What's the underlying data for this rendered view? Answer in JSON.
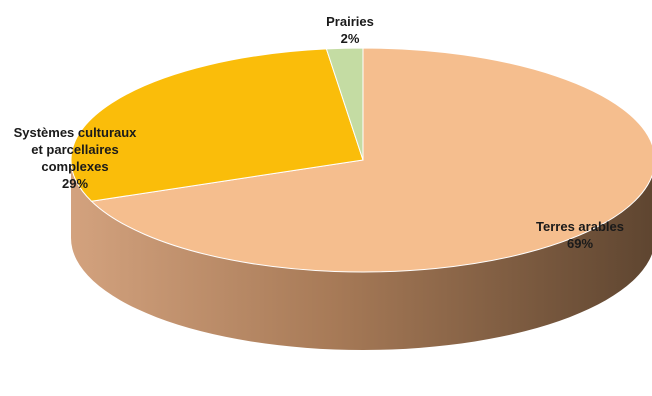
{
  "chart_data": {
    "type": "pie",
    "title": "",
    "slices": [
      {
        "label": "Terres arables",
        "value": 69,
        "pct_label": "69%",
        "color": "#F5BE8E"
      },
      {
        "label": "Systèmes culturaux et parcellaires complexes",
        "value": 29,
        "pct_label": "29%",
        "color": "#FABD0A"
      },
      {
        "label": "Prairies",
        "value": 2,
        "pct_label": "2%",
        "color": "#C4DCA3"
      }
    ],
    "style": "3d"
  },
  "labels": {
    "terres": {
      "line1": "Terres arables",
      "pct": "69%"
    },
    "systemes": {
      "line1": "Systèmes culturaux",
      "line2": "et parcellaires",
      "line3": "complexes",
      "pct": "29%"
    },
    "prairies": {
      "line1": "Prairies",
      "pct": "2%"
    }
  }
}
